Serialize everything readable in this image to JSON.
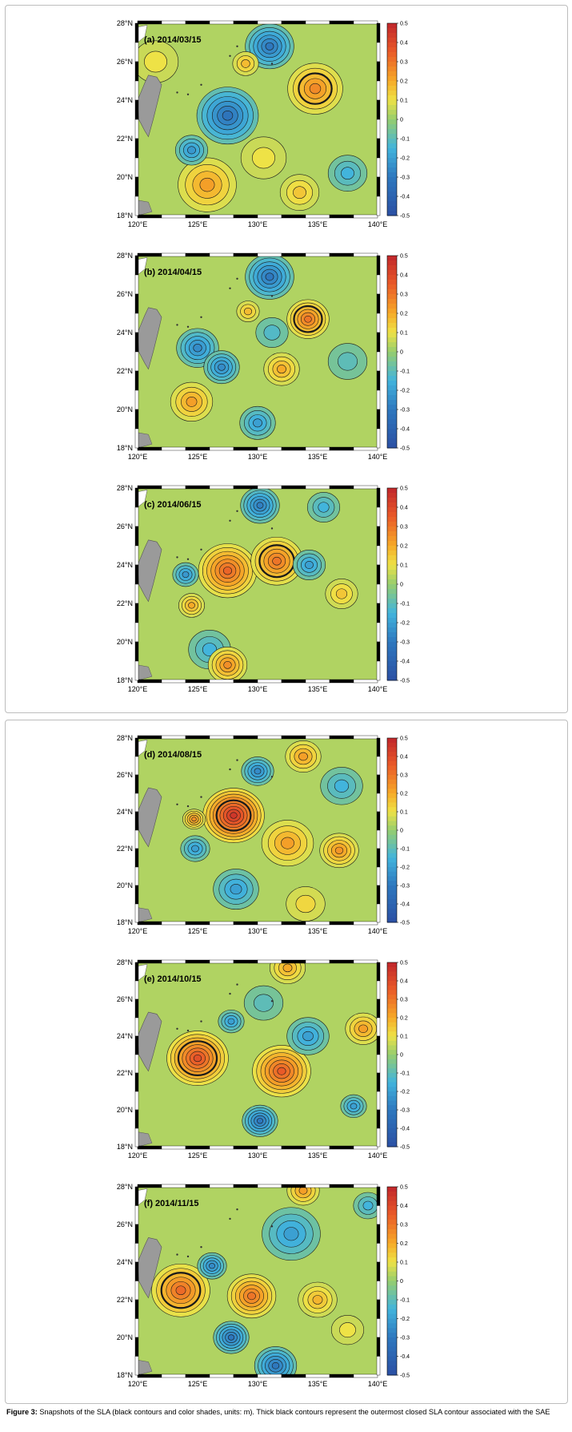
{
  "figure": {
    "caption_label": "Figure 3:",
    "caption_text": " Snapshots of the SLA (black contours and color shades, units: m). Thick black contours represent the outermost closed SLA contour associated with the SAE",
    "units": "m",
    "lat_ticks": [
      "28°N",
      "26°N",
      "24°N",
      "22°N",
      "20°N",
      "18°N"
    ],
    "lon_ticks": [
      "120°E",
      "125°E",
      "130°E",
      "135°E",
      "140°E"
    ],
    "colorbar_ticks": [
      "0.5",
      "0.4",
      "0.3",
      "0.2",
      "0.1",
      "0",
      "-0.1",
      "-0.2",
      "-0.3",
      "-0.4",
      "-0.5"
    ],
    "colorbar_range": [
      -0.5,
      0.5
    ],
    "colors": {
      "positive": "#c0262b",
      "zero": "#a9d36a",
      "negative": "#2b4fa3",
      "land": "#9a9a9a"
    },
    "panels": [
      {
        "label": "(a) 2014/03/15",
        "anomalies": [
          {
            "lon": 127.5,
            "lat": 23.2,
            "v": -0.32,
            "r": 1.9
          },
          {
            "lon": 131.0,
            "lat": 26.8,
            "v": -0.3,
            "r": 1.5
          },
          {
            "lon": 134.8,
            "lat": 24.6,
            "v": 0.26,
            "r": 1.7,
            "sae": true
          },
          {
            "lon": 125.8,
            "lat": 19.6,
            "v": 0.22,
            "r": 1.8
          },
          {
            "lon": 124.5,
            "lat": 21.4,
            "v": -0.22,
            "r": 1.0
          },
          {
            "lon": 130.5,
            "lat": 21.0,
            "v": 0.1,
            "r": 1.4
          },
          {
            "lon": 137.5,
            "lat": 20.2,
            "v": -0.15,
            "r": 1.2
          },
          {
            "lon": 133.5,
            "lat": 19.2,
            "v": 0.15,
            "r": 1.2
          },
          {
            "lon": 129.0,
            "lat": 25.9,
            "v": 0.17,
            "r": 0.8
          },
          {
            "lon": 121.5,
            "lat": 26.0,
            "v": 0.1,
            "r": 1.4
          }
        ]
      },
      {
        "label": "(b) 2014/04/15",
        "anomalies": [
          {
            "lon": 134.2,
            "lat": 24.7,
            "v": 0.3,
            "r": 1.3,
            "sae": true
          },
          {
            "lon": 131.0,
            "lat": 26.9,
            "v": -0.3,
            "r": 1.5
          },
          {
            "lon": 125.0,
            "lat": 23.2,
            "v": -0.25,
            "r": 1.3
          },
          {
            "lon": 127.0,
            "lat": 22.2,
            "v": -0.25,
            "r": 1.1
          },
          {
            "lon": 124.5,
            "lat": 20.4,
            "v": 0.22,
            "r": 1.3
          },
          {
            "lon": 132.0,
            "lat": 22.1,
            "v": 0.2,
            "r": 1.1
          },
          {
            "lon": 130.0,
            "lat": 19.3,
            "v": -0.2,
            "r": 1.1
          },
          {
            "lon": 129.2,
            "lat": 25.1,
            "v": 0.17,
            "r": 0.7
          },
          {
            "lon": 131.2,
            "lat": 24.0,
            "v": -0.12,
            "r": 1.0
          },
          {
            "lon": 137.5,
            "lat": 22.5,
            "v": -0.1,
            "r": 1.2
          }
        ]
      },
      {
        "label": "(c) 2014/06/15",
        "anomalies": [
          {
            "lon": 127.5,
            "lat": 23.7,
            "v": 0.33,
            "r": 1.8
          },
          {
            "lon": 131.6,
            "lat": 24.2,
            "v": 0.3,
            "r": 1.6,
            "sae": true
          },
          {
            "lon": 130.2,
            "lat": 27.1,
            "v": -0.28,
            "r": 1.2
          },
          {
            "lon": 124.0,
            "lat": 23.5,
            "v": -0.22,
            "r": 0.8
          },
          {
            "lon": 134.3,
            "lat": 24.0,
            "v": -0.2,
            "r": 1.0
          },
          {
            "lon": 124.5,
            "lat": 21.9,
            "v": 0.2,
            "r": 0.8
          },
          {
            "lon": 126.0,
            "lat": 19.6,
            "v": -0.15,
            "r": 1.3
          },
          {
            "lon": 137.0,
            "lat": 22.5,
            "v": 0.15,
            "r": 1.0
          },
          {
            "lon": 135.5,
            "lat": 27.0,
            "v": -0.15,
            "r": 1.0
          },
          {
            "lon": 127.5,
            "lat": 18.8,
            "v": 0.25,
            "r": 1.2
          }
        ]
      },
      {
        "label": "(d) 2014/08/15",
        "anomalies": [
          {
            "lon": 128.0,
            "lat": 23.8,
            "v": 0.45,
            "r": 1.9,
            "sae": true
          },
          {
            "lon": 130.0,
            "lat": 26.2,
            "v": -0.25,
            "r": 1.0
          },
          {
            "lon": 124.7,
            "lat": 23.6,
            "v": 0.25,
            "r": 0.7
          },
          {
            "lon": 124.8,
            "lat": 22.0,
            "v": -0.2,
            "r": 0.9
          },
          {
            "lon": 132.5,
            "lat": 22.3,
            "v": 0.22,
            "r": 1.6
          },
          {
            "lon": 136.8,
            "lat": 21.9,
            "v": 0.24,
            "r": 1.2
          },
          {
            "lon": 128.2,
            "lat": 19.8,
            "v": -0.2,
            "r": 1.4
          },
          {
            "lon": 133.8,
            "lat": 27.0,
            "v": 0.22,
            "r": 1.1
          },
          {
            "lon": 137.0,
            "lat": 25.4,
            "v": -0.15,
            "r": 1.3
          },
          {
            "lon": 134.0,
            "lat": 19.0,
            "v": 0.12,
            "r": 1.2
          }
        ]
      },
      {
        "label": "(e) 2014/10/15",
        "anomalies": [
          {
            "lon": 125.0,
            "lat": 22.8,
            "v": 0.38,
            "r": 1.9,
            "sae": true
          },
          {
            "lon": 132.0,
            "lat": 22.1,
            "v": 0.35,
            "r": 1.8
          },
          {
            "lon": 130.2,
            "lat": 19.4,
            "v": -0.3,
            "r": 1.1
          },
          {
            "lon": 127.8,
            "lat": 24.8,
            "v": -0.2,
            "r": 0.8
          },
          {
            "lon": 134.2,
            "lat": 24.0,
            "v": -0.2,
            "r": 1.3
          },
          {
            "lon": 138.8,
            "lat": 24.4,
            "v": 0.22,
            "r": 1.1
          },
          {
            "lon": 138.0,
            "lat": 20.2,
            "v": -0.2,
            "r": 0.8
          },
          {
            "lon": 132.5,
            "lat": 27.7,
            "v": 0.2,
            "r": 1.1
          },
          {
            "lon": 130.5,
            "lat": 25.8,
            "v": -0.1,
            "r": 1.2
          }
        ]
      },
      {
        "label": "(f) 2014/11/15",
        "anomalies": [
          {
            "lon": 123.6,
            "lat": 22.5,
            "v": 0.32,
            "r": 1.8,
            "sae": true
          },
          {
            "lon": 129.5,
            "lat": 22.2,
            "v": 0.3,
            "r": 1.5
          },
          {
            "lon": 126.2,
            "lat": 23.8,
            "v": -0.25,
            "r": 0.9
          },
          {
            "lon": 127.8,
            "lat": 20.0,
            "v": -0.3,
            "r": 1.1
          },
          {
            "lon": 131.5,
            "lat": 18.5,
            "v": -0.3,
            "r": 1.3
          },
          {
            "lon": 132.8,
            "lat": 25.5,
            "v": -0.2,
            "r": 1.8
          },
          {
            "lon": 135.0,
            "lat": 22.0,
            "v": 0.18,
            "r": 1.2
          },
          {
            "lon": 133.8,
            "lat": 27.8,
            "v": 0.22,
            "r": 1.0
          },
          {
            "lon": 139.2,
            "lat": 27.0,
            "v": -0.15,
            "r": 0.9
          },
          {
            "lon": 137.5,
            "lat": 20.4,
            "v": 0.1,
            "r": 1.0
          }
        ]
      }
    ]
  }
}
